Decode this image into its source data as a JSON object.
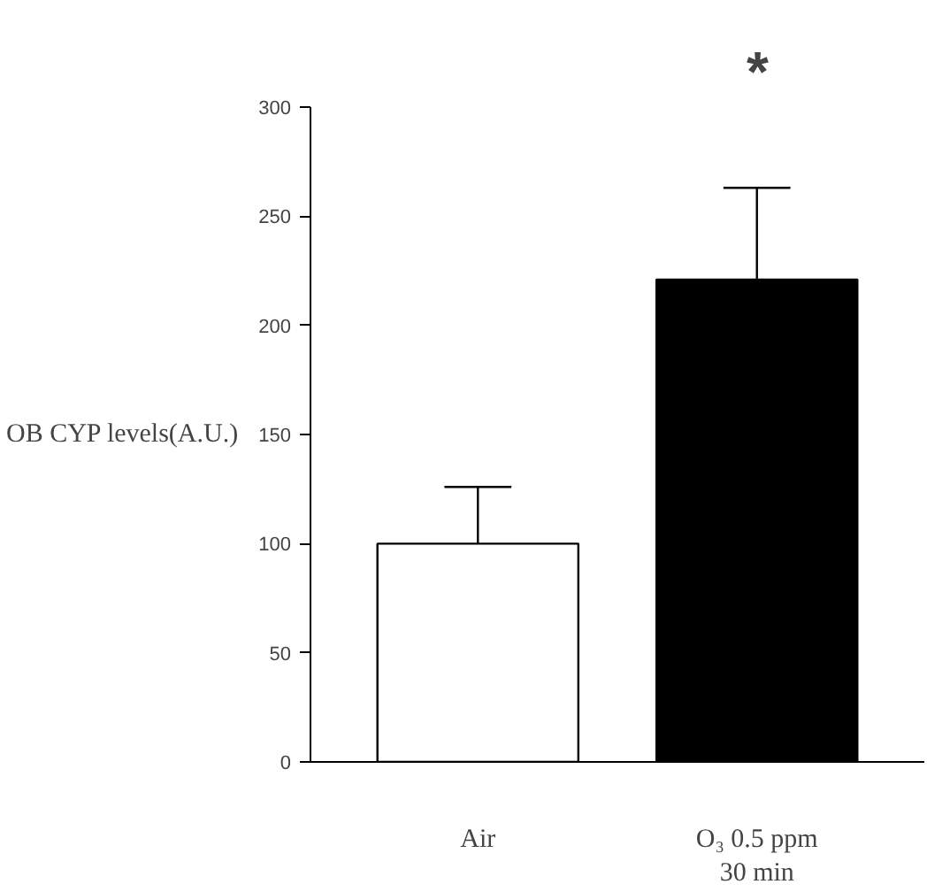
{
  "chart_data": {
    "type": "bar",
    "ylabel": "OB CYP levels(A.U.)",
    "categories": [
      "Air",
      "O₃ 0.5 ppm\n30 min"
    ],
    "values": [
      100,
      221
    ],
    "colors": [
      "#ffffff",
      "#000000"
    ],
    "errors": [
      [
        100,
        126
      ],
      [
        221,
        263
      ]
    ],
    "ylim": [
      0,
      300
    ],
    "yticks": [
      0,
      50,
      100,
      150,
      200,
      250,
      300
    ],
    "annotations": [
      "*"
    ],
    "grid": false
  }
}
